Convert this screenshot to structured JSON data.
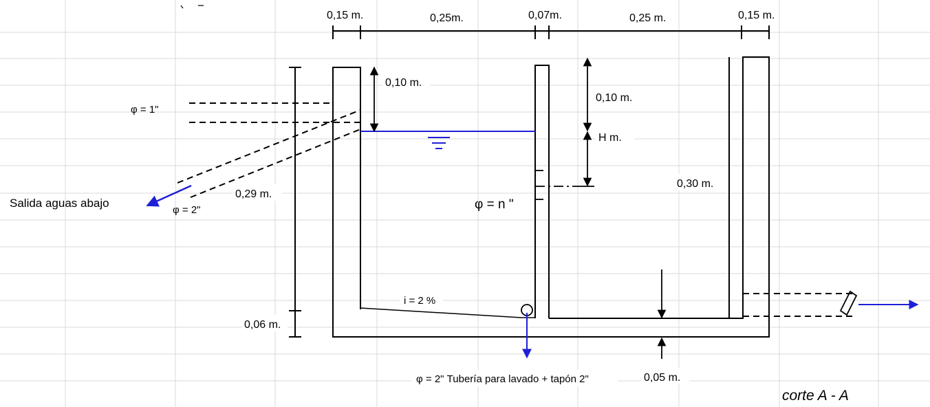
{
  "diagram": {
    "dimensions": {
      "top_w1": "0,15 m.",
      "top_w2": "0,25m.",
      "top_w3": "0,07m.",
      "top_w4": "0,25 m.",
      "top_w5": "0,15 m.",
      "free_board_left": "0,10 m.",
      "free_board_right": "0,10 m.",
      "head": "H  m.",
      "left_height": "0,29  m.",
      "bottom_left": "0,06 m.",
      "right_height": "0,30 m.",
      "floor": "0,05 m."
    },
    "pipes": {
      "inlet": "φ = 1\"",
      "overflow": "φ = 2\"",
      "orifice": "φ = n \"",
      "drain": "φ = 2\"  Tubería para lavado + tapón 2\""
    },
    "notes": {
      "outlet": "Salida aguas abajo",
      "slope": "i = 2 %",
      "section": "corte A - A"
    },
    "colors": {
      "water": "#1f1fd8",
      "line": "#000000",
      "grid": "#d9d9d9"
    }
  }
}
